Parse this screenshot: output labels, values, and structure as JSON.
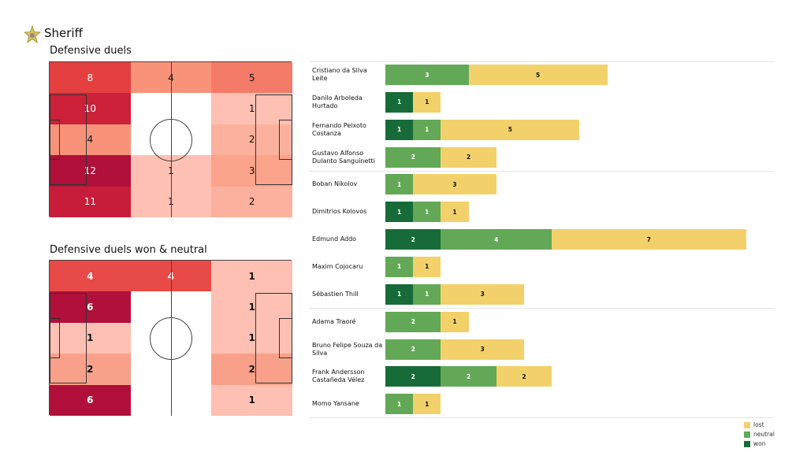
{
  "team": "Sheriff",
  "colors": {
    "won": "#176b38",
    "neutral": "#63a857",
    "lost": "#f2d16b"
  },
  "chart_data": [
    {
      "type": "heatmap",
      "title": "Defensive duels",
      "rows": 5,
      "cols": 3,
      "values": [
        [
          8,
          4,
          5
        ],
        [
          10,
          0,
          1
        ],
        [
          4,
          0,
          2
        ],
        [
          12,
          1,
          3
        ],
        [
          11,
          1,
          2
        ]
      ],
      "colors": [
        [
          "#e4403f",
          "#f8937a",
          "#f47b68"
        ],
        [
          "#cc2139",
          "#ffffff",
          "#fdc0b2"
        ],
        [
          "#f8937a",
          "#ffffff",
          "#fcb19e"
        ],
        [
          "#b0103a",
          "#fdc0b2",
          "#fba48b"
        ],
        [
          "#c81d3a",
          "#fdc0b2",
          "#fcb19e"
        ]
      ]
    },
    {
      "type": "heatmap",
      "title": "Defensive duels won & neutral",
      "rows": 5,
      "cols": 3,
      "values": [
        [
          4,
          4,
          1
        ],
        [
          6,
          0,
          1
        ],
        [
          1,
          0,
          1
        ],
        [
          2,
          0,
          2
        ],
        [
          6,
          0,
          1
        ]
      ],
      "colors": [
        [
          "#e84a47",
          "#e84a47",
          "#fdc0b2"
        ],
        [
          "#b0103a",
          "#ffffff",
          "#fdc0b2"
        ],
        [
          "#fdc0b2",
          "#ffffff",
          "#fdc0b2"
        ],
        [
          "#f9a08a",
          "#ffffff",
          "#f9a08a"
        ],
        [
          "#b0103a",
          "#ffffff",
          "#fdc0b2"
        ]
      ]
    },
    {
      "type": "bar",
      "orientation": "horizontal",
      "stacked": true,
      "legend": {
        "placement": "bottom-right",
        "entries": [
          "lost",
          "neutral",
          "won"
        ]
      },
      "categories": [
        "Cristiano da Silva Leite",
        "Danilo Arboleda Hurtado",
        "Fernando Peixoto Costanza",
        "Gustavo Alfonso Dulanto Sanguinetti",
        "Boban Nikolov",
        "Dimitrios Kolovos",
        "Edmund Addo",
        "Maxim Cojocaru",
        "Sébastien Thill",
        "Adama Traoré",
        "Bruno Felipe Souza da Silva",
        "Frank Andersson Castañeda Vélez",
        "Momo Yansane"
      ],
      "series": [
        {
          "name": "won",
          "values": [
            0,
            1,
            1,
            0,
            0,
            1,
            2,
            0,
            1,
            0,
            0,
            2,
            0
          ]
        },
        {
          "name": "neutral",
          "values": [
            3,
            0,
            1,
            2,
            1,
            1,
            4,
            1,
            1,
            2,
            2,
            2,
            1
          ]
        },
        {
          "name": "lost",
          "values": [
            5,
            1,
            5,
            2,
            3,
            1,
            7,
            1,
            3,
            1,
            3,
            2,
            1
          ]
        }
      ]
    }
  ]
}
